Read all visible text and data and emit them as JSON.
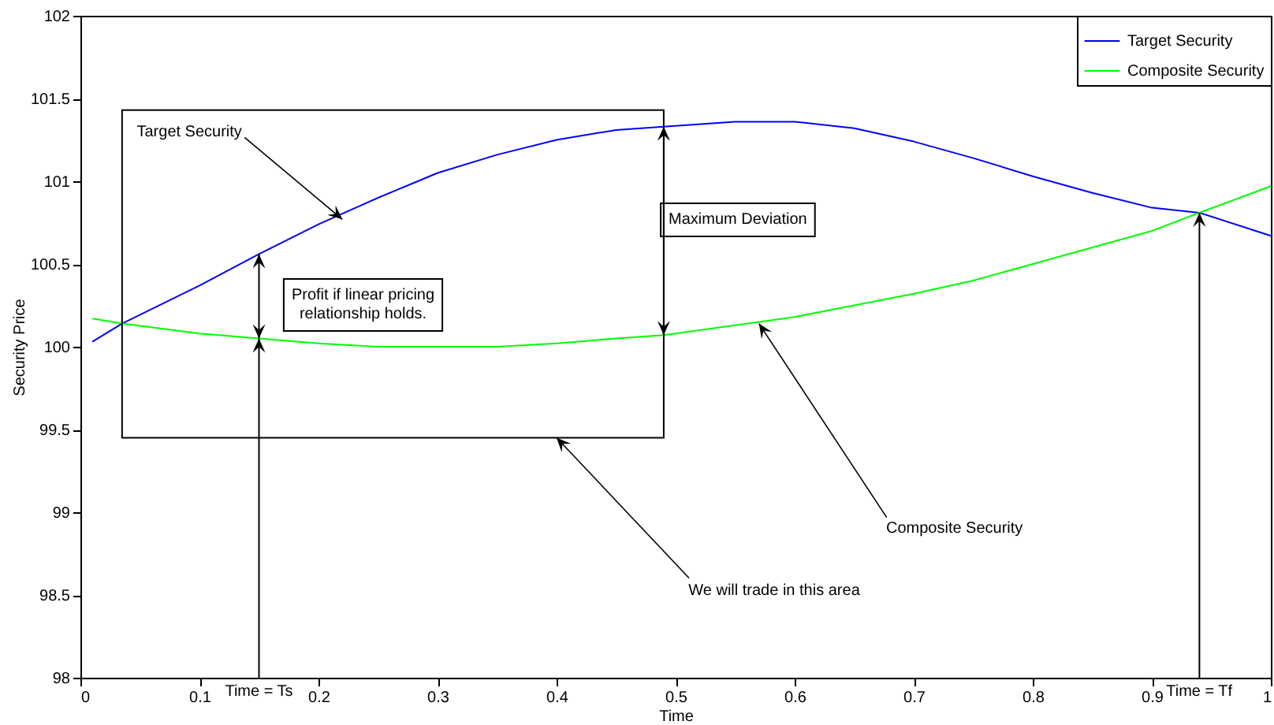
{
  "chart_data": {
    "type": "line",
    "xlabel": "Time",
    "ylabel": "Security Price",
    "x": [
      0.01,
      0.035,
      0.1,
      0.15,
      0.2,
      0.25,
      0.3,
      0.35,
      0.4,
      0.45,
      0.49,
      0.55,
      0.6,
      0.65,
      0.7,
      0.75,
      0.8,
      0.85,
      0.9,
      0.94,
      1
    ],
    "series": [
      {
        "name": "Target Security",
        "color": "#0000ff",
        "values": [
          100.03,
          100.14,
          100.37,
          100.56,
          100.74,
          100.9,
          101.05,
          101.16,
          101.25,
          101.31,
          101.33,
          101.36,
          101.36,
          101.32,
          101.24,
          101.14,
          101.03,
          100.93,
          100.84,
          100.81,
          100.67
        ]
      },
      {
        "name": "Composite Security",
        "color": "#00ff00",
        "values": [
          100.17,
          100.14,
          100.08,
          100.05,
          100.02,
          100.0,
          100.0,
          100.0,
          100.02,
          100.05,
          100.07,
          100.13,
          100.18,
          100.25,
          100.32,
          100.4,
          100.5,
          100.6,
          100.7,
          100.81,
          100.97
        ]
      }
    ],
    "xlim": [
      0,
      1
    ],
    "xticks": [
      0,
      0.1,
      0.2,
      0.3,
      0.4,
      0.5,
      0.6,
      0.7,
      0.8,
      0.9,
      1
    ],
    "ylim": [
      98,
      102
    ],
    "yticks": [
      98,
      98.5,
      99,
      99.5,
      100,
      100.5,
      101,
      101.5,
      102
    ],
    "legend": "top right",
    "grid": false,
    "marker": "none",
    "line_style": "solid",
    "annotations": [
      {
        "text": "Target Security",
        "x": 0.22,
        "y": 100.77
      },
      "Maximum Deviation",
      "Profit if linear pricing relationship holds.",
      {
        "text": "Composite Security",
        "x": 0.57,
        "y": 100.14
      },
      "We will trade in this area",
      {
        "text": "Time = Ts",
        "x": 0.15,
        "y": 100.05
      },
      {
        "text": "Time = Tf",
        "x": 0.94,
        "y": 100.81
      }
    ]
  }
}
